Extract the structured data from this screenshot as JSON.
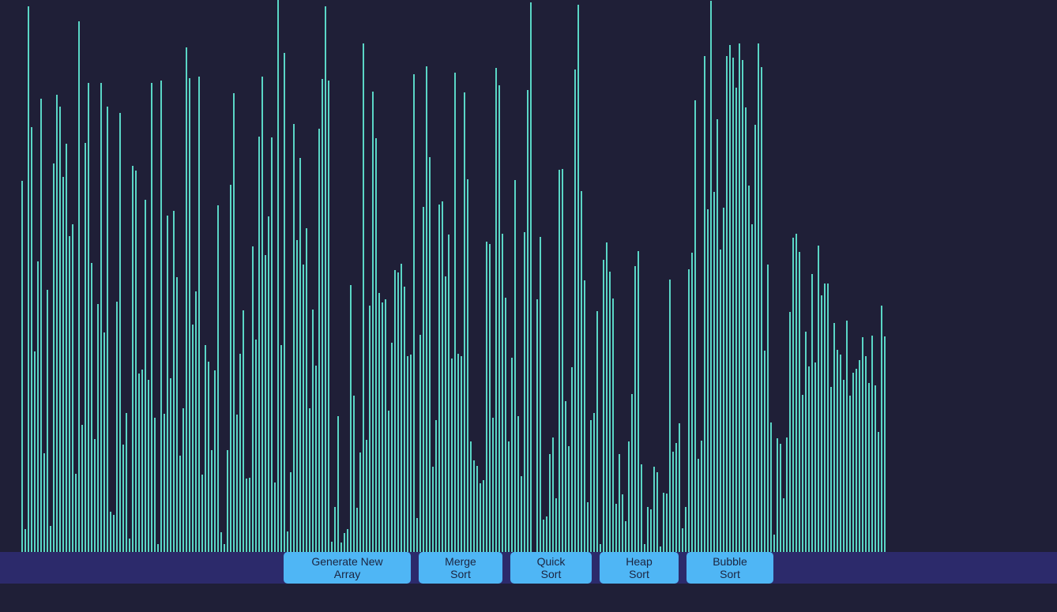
{
  "colors": {
    "background": "#1f1f37",
    "bar": "#5ad6c6",
    "toolbar": "#2c2a6b",
    "button": "#4fb6f5",
    "button_text": "#1b2440"
  },
  "toolbar": {
    "buttons": [
      {
        "label": "Generate New Array"
      },
      {
        "label": "Merge Sort"
      },
      {
        "label": "Quick Sort"
      },
      {
        "label": "Heap Sort"
      },
      {
        "label": "Bubble Sort"
      }
    ]
  },
  "array": {
    "max_value": 700,
    "values": [
      471,
      29,
      692,
      539,
      254,
      369,
      575,
      125,
      332,
      33,
      493,
      580,
      565,
      476,
      518,
      401,
      416,
      99,
      673,
      161,
      519,
      595,
      367,
      143,
      314,
      595,
      278,
      565,
      51,
      47,
      317,
      557,
      136,
      176,
      17,
      490,
      484,
      226,
      231,
      447,
      218,
      595,
      170,
      10,
      598,
      175,
      427,
      220,
      433,
      348,
      122,
      182,
      640,
      601,
      288,
      330,
      603,
      98,
      262,
      241,
      129,
      230,
      440,
      25,
      10,
      129,
      466,
      582,
      174,
      251,
      306,
      93,
      94,
      388,
      269,
      527,
      603,
      377,
      426,
      526,
      88,
      700,
      262,
      633,
      26,
      101,
      543,
      396,
      500,
      365,
      411,
      182,
      307,
      236,
      537,
      600,
      692,
      598,
      13,
      57,
      172,
      12,
      24,
      29,
      338,
      198,
      56,
      126,
      645,
      142,
      312,
      584,
      525,
      328,
      316,
      320,
      179,
      265,
      358,
      355,
      366,
      336,
      248,
      250,
      606,
      43,
      275,
      438,
      616,
      501,
      108,
      167,
      441,
      445,
      349,
      403,
      245,
      608,
      251,
      248,
      583,
      473,
      140,
      116,
      109,
      87,
      91,
      394,
      391,
      170,
      614,
      592,
      404,
      322,
      140,
      246,
      472,
      172,
      96,
      406,
      586,
      697,
      0,
      320,
      400,
      41,
      45,
      124,
      145,
      68,
      485,
      486,
      191,
      134,
      234,
      612,
      694,
      458,
      344,
      63,
      167,
      176,
      305,
      10,
      371,
      393,
      356,
      321,
      61,
      124,
      73,
      39,
      140,
      200,
      363,
      382,
      111,
      10,
      57,
      54,
      108,
      101,
      7,
      75,
      74,
      345,
      127,
      138,
      163,
      30,
      57,
      359,
      380,
      573,
      118,
      141,
      629,
      435,
      699,
      457,
      549,
      384,
      437,
      629,
      643,
      627,
      589,
      645,
      624,
      564,
      465,
      416,
      542,
      645,
      615,
      255,
      365,
      164,
      22,
      144,
      137,
      68,
      145,
      304,
      399,
      404,
      381,
      199,
      279,
      235,
      353,
      240,
      389,
      325,
      340,
      340,
      209,
      290,
      256,
      250,
      218,
      293,
      198,
      227,
      232,
      243,
      272,
      248,
      214,
      274,
      211,
      152,
      312,
      273
    ]
  }
}
